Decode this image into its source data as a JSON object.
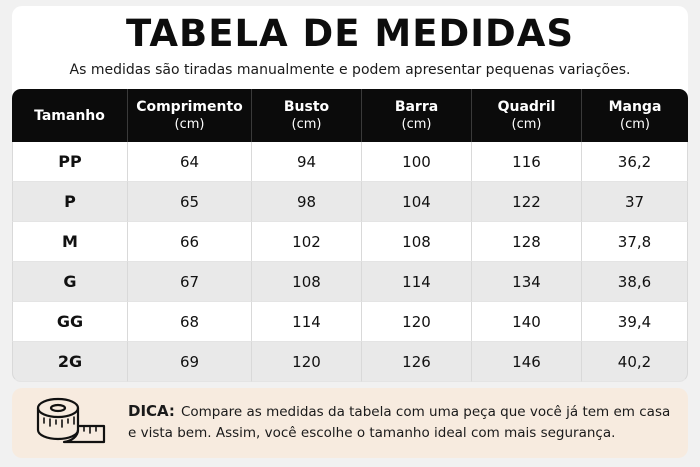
{
  "header": {
    "title": "TABELA DE MEDIDAS",
    "subtitle": "As medidas são tiradas manualmente e podem apresentar pequenas variações."
  },
  "table": {
    "columns": [
      {
        "label": "Tamanho",
        "unit": ""
      },
      {
        "label": "Comprimento",
        "unit": "(cm)"
      },
      {
        "label": "Busto",
        "unit": "(cm)"
      },
      {
        "label": "Barra",
        "unit": "(cm)"
      },
      {
        "label": "Quadril",
        "unit": "(cm)"
      },
      {
        "label": "Manga",
        "unit": "(cm)"
      }
    ],
    "rows": [
      [
        "PP",
        "64",
        "94",
        "100",
        "116",
        "36,2"
      ],
      [
        "P",
        "65",
        "98",
        "104",
        "122",
        "37"
      ],
      [
        "M",
        "66",
        "102",
        "108",
        "128",
        "37,8"
      ],
      [
        "G",
        "67",
        "108",
        "114",
        "134",
        "38,6"
      ],
      [
        "GG",
        "68",
        "114",
        "120",
        "140",
        "39,4"
      ],
      [
        "2G",
        "69",
        "120",
        "126",
        "146",
        "40,2"
      ]
    ]
  },
  "tip": {
    "label": "DICA:",
    "text": "Compare as medidas da tabela com uma peça que você já tem em casa e vista bem. Assim, você escolhe o tamanho ideal com mais segurança.",
    "icon": "measuring-tape-icon"
  },
  "colors": {
    "header_bg": "#0b0b0b",
    "row_alt": "#e9e9e9",
    "tip_bg": "#f7ebdf"
  }
}
